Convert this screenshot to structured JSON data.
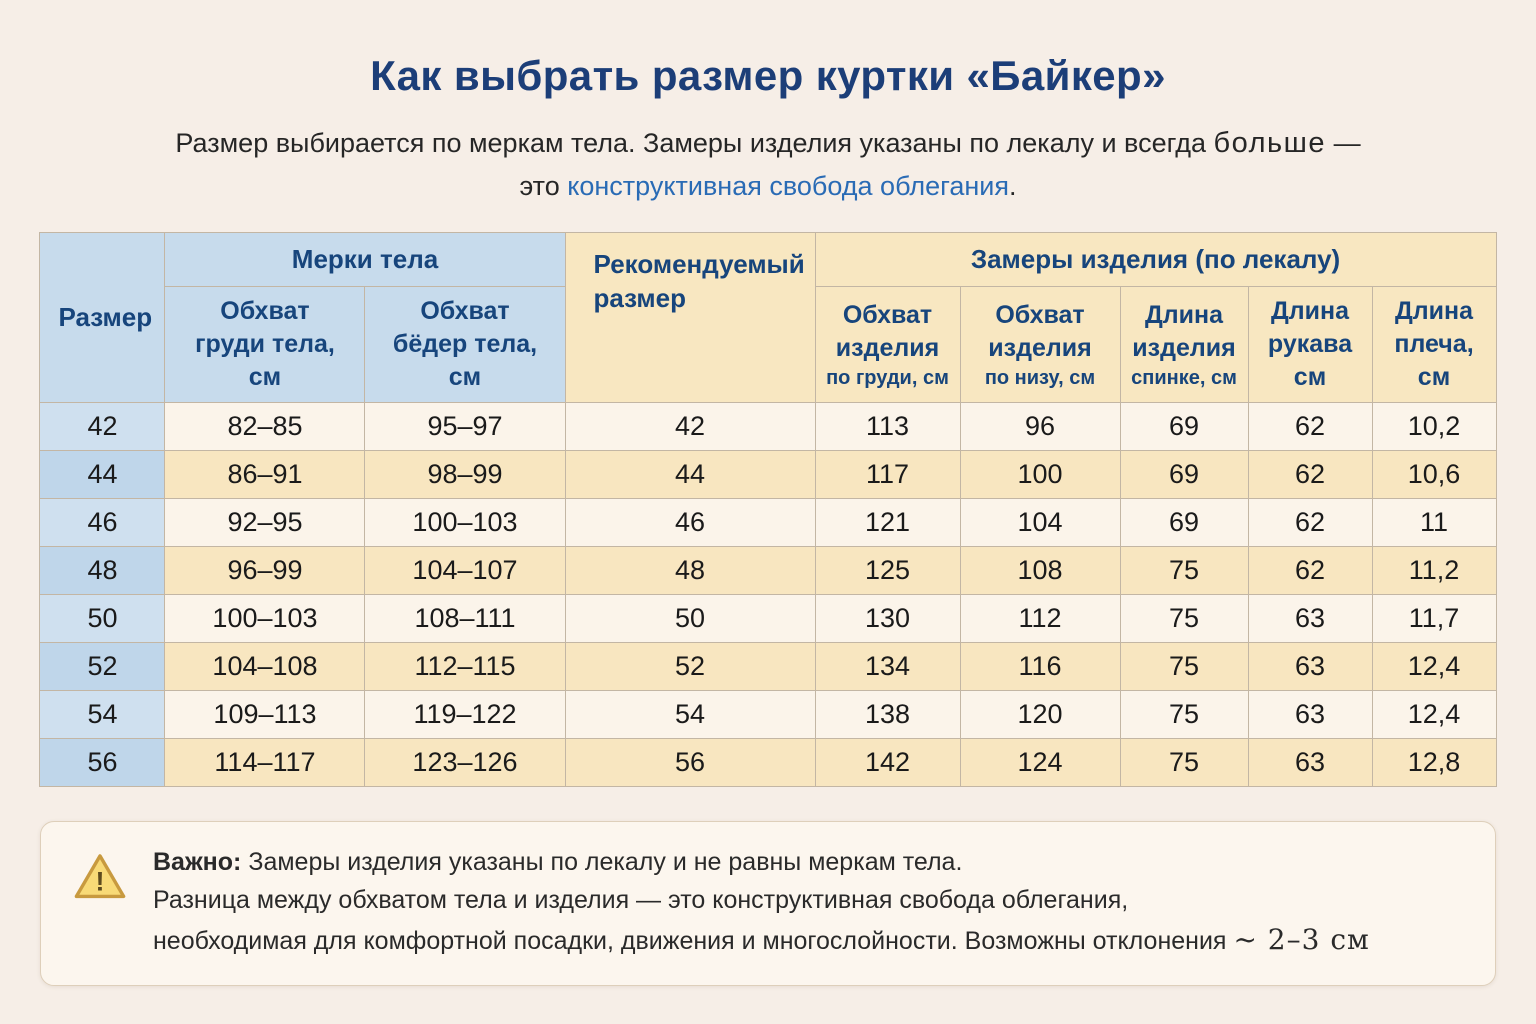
{
  "page": {
    "title": "Как выбрать размер куртки «Байкер»",
    "subtitle": {
      "line1_text": "Размер выбирается по меркам тела. Замеры изделия указаны по лекалу и всегда",
      "line1_emph": "больше",
      "line1_dash": "—",
      "line2_lead": "это",
      "line2_blue": "конструктивная свобода облегания",
      "line2_end": "."
    }
  },
  "colors": {
    "title_blue": "#1c3e78",
    "link_blue": "#2a6bb5",
    "header_blue_bg": "#c7dbec",
    "header_yellow_bg": "#f8e7c1",
    "row_cream_bg": "#fbf4ea",
    "row_yellow_bg": "#f8e6c0",
    "size_col_blue_bg": "#cfe0ef"
  },
  "table": {
    "size_header": "Размер",
    "body_group": "Мерки тела",
    "recommended": [
      "Рекомендуемый",
      "размер"
    ],
    "product_group": "Замеры изделия (по лекалу)",
    "cols": {
      "chest_body": [
        "Обхват",
        "груди тела,",
        "см"
      ],
      "hips_body": [
        "Обхват",
        "бёдер тела,",
        "см"
      ],
      "product_chest": [
        "Обхват",
        "изделия",
        "по груди, см"
      ],
      "product_bottom": [
        "Обхват",
        "изделия",
        "по низу, см"
      ],
      "product_length": [
        "Длина",
        "изделия",
        "спинке, см"
      ],
      "sleeve_length": [
        "Длина",
        "рукава",
        "см"
      ],
      "shoulder_length": [
        "Длина",
        "плеча,",
        "см"
      ]
    },
    "rows": [
      [
        "42",
        "82–85",
        "95–97",
        "42",
        "113",
        "96",
        "69",
        "62",
        "10,2"
      ],
      [
        "44",
        "86–91",
        "98–99",
        "44",
        "117",
        "100",
        "69",
        "62",
        "10,6"
      ],
      [
        "46",
        "92–95",
        "100–103",
        "46",
        "121",
        "104",
        "69",
        "62",
        "11"
      ],
      [
        "48",
        "96–99",
        "104–107",
        "48",
        "125",
        "108",
        "75",
        "62",
        "11,2"
      ],
      [
        "50",
        "100–103",
        "108–111",
        "50",
        "130",
        "112",
        "75",
        "63",
        "11,7"
      ],
      [
        "52",
        "104–108",
        "112–115",
        "52",
        "134",
        "116",
        "75",
        "63",
        "12,4"
      ],
      [
        "54",
        "109–113",
        "119–122",
        "54",
        "138",
        "120",
        "75",
        "63",
        "12,4"
      ],
      [
        "56",
        "114–117",
        "123–126",
        "56",
        "142",
        "124",
        "75",
        "63",
        "12,8"
      ]
    ]
  },
  "note": {
    "label": "Важно:",
    "line1": "Замеры изделия указаны по лекалу и не равны меркам тела.",
    "line2": "Разница между обхватом тела и изделия — это конструктивная свобода облегания,",
    "line3": "необходимая для комфортной посадки, движения и многослойности. Возможны отклонения",
    "deviation": "~ 2–3 см"
  }
}
